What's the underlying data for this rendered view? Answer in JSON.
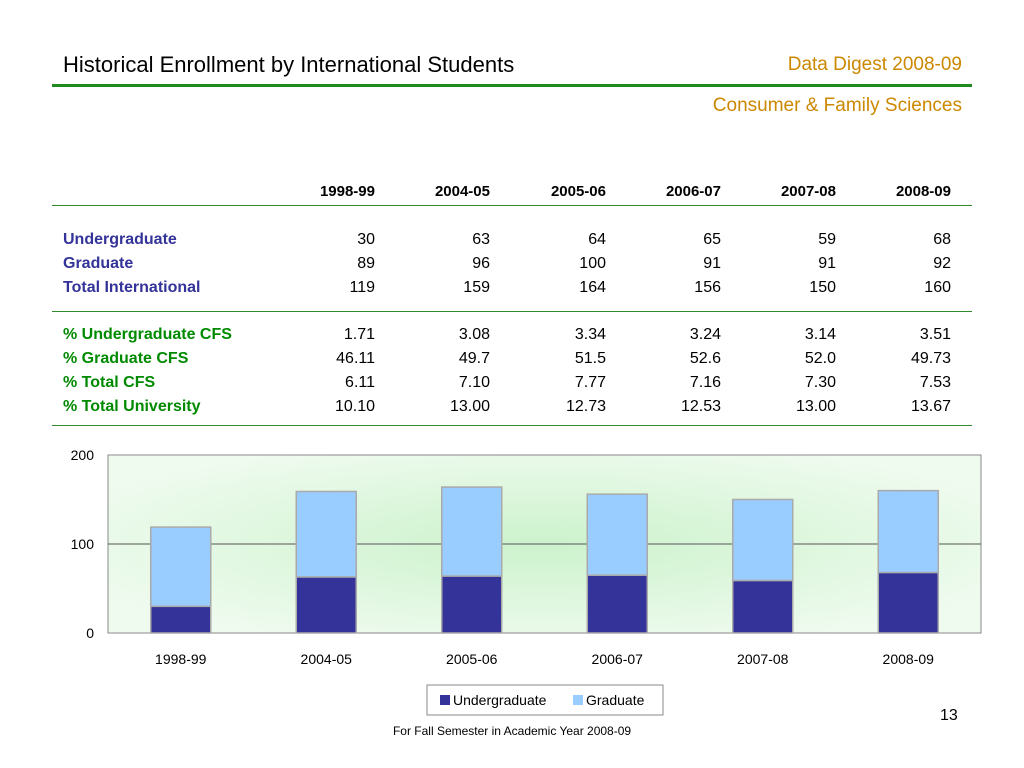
{
  "header": {
    "title": "Historical Enrollment by International Students",
    "digest": "Data Digest 2008-09",
    "department": "Consumer & Family Sciences"
  },
  "table": {
    "columns": [
      "1998-99",
      "2004-05",
      "2005-06",
      "2006-07",
      "2007-08",
      "2008-09"
    ],
    "group1": [
      {
        "label": "Undergraduate",
        "values": [
          "30",
          "63",
          "64",
          "65",
          "59",
          "68"
        ]
      },
      {
        "label": "Graduate",
        "values": [
          "89",
          "96",
          "100",
          "91",
          "91",
          "92"
        ]
      },
      {
        "label": "Total International",
        "values": [
          "119",
          "159",
          "164",
          "156",
          "150",
          "160"
        ]
      }
    ],
    "group2": [
      {
        "label": "% Undergraduate CFS",
        "values": [
          "1.71",
          "3.08",
          "3.34",
          "3.24",
          "3.14",
          "3.51"
        ]
      },
      {
        "label": "% Graduate CFS",
        "values": [
          "46.11",
          "49.7",
          "51.5",
          "52.6",
          "52.0",
          "49.73"
        ]
      },
      {
        "label": "% Total CFS",
        "values": [
          "6.11",
          "7.10",
          "7.77",
          "7.16",
          "7.30",
          "7.53"
        ]
      },
      {
        "label": "% Total University",
        "values": [
          "10.10",
          "13.00",
          "12.73",
          "12.53",
          "13.00",
          "13.67"
        ]
      }
    ],
    "colors": {
      "group1_label": "#333399",
      "group2_label": "#008a00"
    }
  },
  "chart_data": {
    "type": "bar",
    "stacked": true,
    "categories": [
      "1998-99",
      "2004-05",
      "2005-06",
      "2006-07",
      "2007-08",
      "2008-09"
    ],
    "series": [
      {
        "name": "Undergraduate",
        "values": [
          30,
          63,
          64,
          65,
          59,
          68
        ],
        "color": "#333399"
      },
      {
        "name": "Graduate",
        "values": [
          89,
          96,
          100,
          91,
          91,
          92
        ],
        "color": "#99ccff"
      }
    ],
    "ylim": [
      0,
      200
    ],
    "yticks": [
      0,
      100,
      200
    ],
    "grid": true,
    "legend": "bottom",
    "title": "",
    "xlabel": "",
    "ylabel": ""
  },
  "footer": {
    "note": "For Fall Semester in Academic Year 2008-09",
    "page": "13"
  }
}
